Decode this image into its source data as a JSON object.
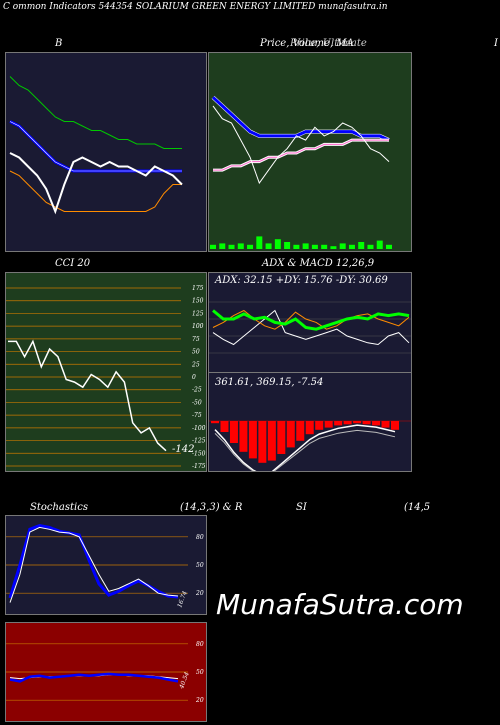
{
  "header": {
    "title": "C         ommon  Indicators 544354  SOLARIUM GREEN  ENERGY LIMITED munafasutra.in"
  },
  "watermark": "MunafaSutra.com",
  "labels": {
    "bb": "B",
    "price": "Price,  Volume,  MA",
    "price_overlap": "Price, Ultimate",
    "right_edge": "I",
    "cci": "CCI 20",
    "adx_macd": "ADX  & MACD 12,26,9",
    "adx_readout": "ADX: 32.15  +DY: 15.76  -DY: 30.69",
    "macd_readout": "361.61,  369.15,  -7.54",
    "cci_value": "-142",
    "stoch": "Stochastics",
    "stoch_params": "(14,3,3) & R",
    "rsi": "SI",
    "rsi_params": "(14,5",
    "stoch_value": "16.74",
    "rsi_value": "40.54"
  },
  "colors": {
    "bb_bg": "#1a1a33",
    "price_bg": "#1e3d1e",
    "cci_bg": "#1e3d1e",
    "adx_bg": "#1a1a33",
    "stoch_bg": "#1a1a33",
    "rsi_bg": "#8b0000",
    "grid": "#c87800",
    "price_line": "#ffffff",
    "band_mid": "#0000ff",
    "band_upper": "#00c800",
    "band_lower": "#ff8c00"
  },
  "chart_data": [
    {
      "type": "line",
      "name": "bollinger",
      "series": [
        {
          "name": "upper",
          "values": [
            82,
            80,
            79,
            77,
            75,
            73,
            72,
            72,
            71,
            70,
            70,
            69,
            68,
            68,
            67,
            67,
            67,
            66,
            66,
            66
          ]
        },
        {
          "name": "middle",
          "values": [
            72,
            71,
            69,
            67,
            65,
            63,
            62,
            61,
            61,
            61,
            61,
            61,
            61,
            61,
            61,
            61,
            61,
            61,
            61,
            61
          ]
        },
        {
          "name": "lower",
          "values": [
            61,
            60,
            58,
            56,
            54,
            53,
            52,
            52,
            52,
            52,
            52,
            52,
            52,
            52,
            52,
            52,
            53,
            56,
            58,
            58
          ]
        },
        {
          "name": "price",
          "values": [
            65,
            64,
            62,
            60,
            57,
            52,
            58,
            63,
            64,
            63,
            62,
            63,
            62,
            62,
            61,
            60,
            62,
            61,
            60,
            58
          ]
        }
      ]
    },
    {
      "type": "line",
      "name": "price_ma_volume",
      "series": [
        {
          "name": "price",
          "values": [
            70,
            67,
            66,
            62,
            58,
            52,
            55,
            58,
            60,
            63,
            62,
            65,
            63,
            64,
            66,
            65,
            63,
            60,
            59,
            57
          ]
        },
        {
          "name": "ma_short",
          "values": [
            72,
            70,
            68,
            66,
            64,
            63,
            63,
            63,
            63,
            63,
            64,
            64,
            64,
            64,
            64,
            64,
            63,
            63,
            63,
            62
          ]
        },
        {
          "name": "ma_long",
          "values": [
            55,
            55,
            56,
            56,
            57,
            57,
            58,
            58,
            59,
            59,
            60,
            60,
            61,
            61,
            61,
            62,
            62,
            62,
            62,
            62
          ]
        },
        {
          "name": "volume",
          "values": [
            3,
            4,
            3,
            4,
            3,
            9,
            4,
            7,
            5,
            3,
            4,
            3,
            3,
            2,
            4,
            3,
            5,
            3,
            6,
            3
          ]
        }
      ]
    },
    {
      "type": "line",
      "name": "cci",
      "yticks": [
        175,
        150,
        125,
        100,
        75,
        50,
        25,
        0,
        -25,
        -50,
        -75,
        -100,
        -125,
        -150,
        -175
      ],
      "ylim": [
        -175,
        175
      ],
      "values": [
        70,
        70,
        40,
        70,
        20,
        55,
        40,
        -5,
        -10,
        -20,
        5,
        -5,
        -20,
        10,
        -10,
        -90,
        -110,
        -100,
        -130,
        -145
      ]
    },
    {
      "type": "line",
      "name": "adx",
      "series": [
        {
          "name": "adx",
          "values": [
            35,
            30,
            30,
            33,
            30,
            31,
            28,
            27,
            30,
            25,
            24,
            26,
            28,
            30,
            31,
            30,
            33,
            32,
            33,
            32
          ]
        },
        {
          "name": "plus_dy",
          "values": [
            22,
            18,
            15,
            20,
            25,
            30,
            35,
            22,
            20,
            18,
            20,
            22,
            24,
            20,
            18,
            16,
            15,
            20,
            22,
            16
          ]
        },
        {
          "name": "minus_dy",
          "values": [
            25,
            28,
            32,
            35,
            30,
            26,
            24,
            28,
            34,
            30,
            28,
            24,
            26,
            30,
            32,
            33,
            30,
            28,
            26,
            31
          ]
        }
      ]
    },
    {
      "type": "bar",
      "name": "macd_histogram",
      "values": [
        -2,
        -10,
        -20,
        -28,
        -34,
        -38,
        -36,
        -30,
        -24,
        -18,
        -12,
        -8,
        -6,
        -4,
        -3,
        -2,
        -3,
        -4,
        -6,
        -8
      ]
    },
    {
      "type": "line",
      "name": "stochastics",
      "yticks": [
        80,
        50,
        20
      ],
      "ylim": [
        0,
        100
      ],
      "series": [
        {
          "name": "k",
          "values": [
            10,
            40,
            85,
            90,
            88,
            85,
            84,
            80,
            60,
            40,
            22,
            25,
            30,
            35,
            28,
            20,
            18,
            17
          ]
        },
        {
          "name": "d",
          "values": [
            15,
            50,
            88,
            92,
            90,
            86,
            84,
            82,
            55,
            30,
            18,
            22,
            28,
            33,
            28,
            22,
            17,
            16
          ]
        }
      ]
    },
    {
      "type": "line",
      "name": "rsi",
      "yticks": [
        80,
        50,
        20
      ],
      "ylim": [
        0,
        100
      ],
      "series": [
        {
          "name": "rsi",
          "values": [
            42,
            40,
            45,
            46,
            44,
            45,
            46,
            47,
            46,
            47,
            48,
            47,
            47,
            46,
            45,
            44,
            42,
            40
          ]
        },
        {
          "name": "ma",
          "values": [
            44,
            43,
            44,
            45,
            45,
            45,
            46,
            46,
            46,
            46,
            47,
            47,
            46,
            46,
            46,
            45,
            44,
            43
          ]
        }
      ]
    }
  ]
}
